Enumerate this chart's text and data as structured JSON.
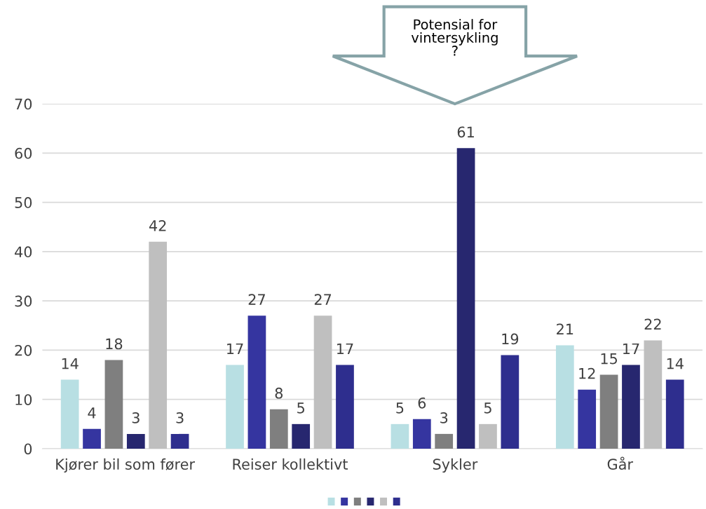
{
  "chart_data": {
    "type": "bar",
    "categories": [
      "Kjører bil som fører",
      "Reiser kollektivt",
      "Sykler",
      "Går"
    ],
    "series": [
      {
        "color": "#b8dfe3",
        "values": [
          14,
          17,
          5,
          21
        ]
      },
      {
        "color": "#3535a0",
        "values": [
          4,
          27,
          6,
          12
        ]
      },
      {
        "color": "#7f7f7f",
        "values": [
          18,
          8,
          3,
          15
        ]
      },
      {
        "color": "#27276f",
        "values": [
          3,
          5,
          61,
          17
        ]
      },
      {
        "color": "#bfbfbf",
        "values": [
          42,
          27,
          5,
          22
        ]
      },
      {
        "color": "#2e2e8e",
        "values": [
          3,
          17,
          19,
          14
        ]
      }
    ],
    "ylim": [
      0,
      70
    ],
    "yticks": [
      0,
      10,
      20,
      30,
      40,
      50,
      60,
      70
    ],
    "grid": "y",
    "data_labels": true,
    "annotations": [
      "Potensial for\nvintersykling\n?"
    ]
  }
}
